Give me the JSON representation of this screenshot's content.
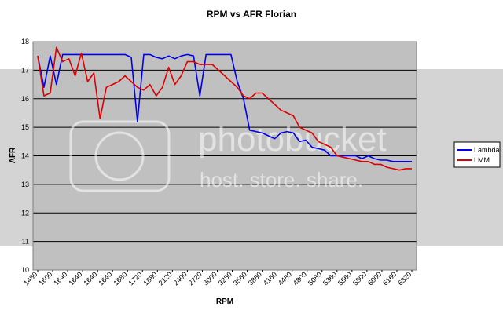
{
  "chart_data": {
    "type": "line",
    "title": "RPM vs AFR Florian",
    "xlabel": "RPM",
    "ylabel": "AFR",
    "ylim": [
      10,
      18
    ],
    "yticks": [
      10,
      11,
      12,
      13,
      14,
      15,
      16,
      17,
      18
    ],
    "grid": true,
    "legend_position": "right",
    "x_tick_labels": [
      "1480",
      "1600",
      "1640",
      "1640",
      "1640",
      "1640",
      "1680",
      "1720",
      "1880",
      "2120",
      "2400",
      "2720",
      "3000",
      "3280",
      "3560",
      "3880",
      "4160",
      "4480",
      "4800",
      "5080",
      "5360",
      "5560",
      "5800",
      "6000",
      "6160",
      "6320"
    ],
    "series": [
      {
        "name": "Lambda",
        "color": "#0000ee",
        "values": [
          17.5,
          16.4,
          17.5,
          16.5,
          17.55,
          17.55,
          17.55,
          17.55,
          17.55,
          17.55,
          17.55,
          17.55,
          17.55,
          17.55,
          17.55,
          17.45,
          15.2,
          17.55,
          17.55,
          17.45,
          17.4,
          17.5,
          17.4,
          17.5,
          17.55,
          17.5,
          16.1,
          17.55,
          17.55,
          17.55,
          17.55,
          17.55,
          16.6,
          16.0,
          14.9,
          14.85,
          14.8,
          14.7,
          14.6,
          14.8,
          14.85,
          14.8,
          14.5,
          14.55,
          14.3,
          14.25,
          14.2,
          14.0,
          14.0,
          14.0,
          14.0,
          14.0,
          13.9,
          14.0,
          13.9,
          13.85,
          13.85,
          13.8,
          13.8,
          13.8,
          13.8
        ]
      },
      {
        "name": "LMM",
        "color": "#dd0000",
        "values": [
          17.5,
          16.1,
          16.2,
          17.8,
          17.3,
          17.4,
          16.8,
          17.6,
          16.6,
          16.9,
          15.3,
          16.4,
          16.5,
          16.6,
          16.8,
          16.6,
          16.4,
          16.3,
          16.5,
          16.1,
          16.4,
          17.1,
          16.5,
          16.8,
          17.3,
          17.3,
          17.2,
          17.2,
          17.2,
          17.0,
          16.8,
          16.6,
          16.4,
          16.1,
          16.0,
          16.2,
          16.2,
          16.0,
          15.8,
          15.6,
          15.5,
          15.4,
          15.0,
          14.9,
          14.8,
          14.5,
          14.4,
          14.3,
          14.0,
          13.95,
          13.9,
          13.85,
          13.8,
          13.8,
          13.7,
          13.7,
          13.6,
          13.55,
          13.5,
          13.55,
          13.55
        ]
      }
    ]
  },
  "watermark": {
    "brand": "photobucket",
    "tagline": "host. store. share."
  }
}
